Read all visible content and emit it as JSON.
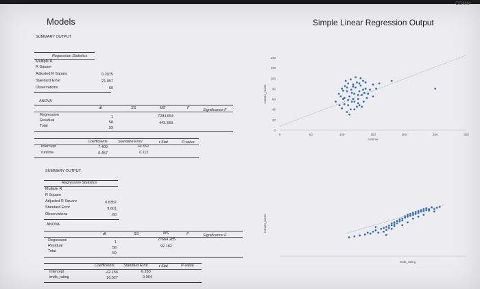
{
  "page": {
    "title": "Models",
    "subtitle": "Simple Linear Regression Output",
    "top_right_fragment": "COMM"
  },
  "output1": {
    "summary_heading": "SUMMARY OUTPUT",
    "regstats_heading": "Regression Statistics",
    "regstats_labels": [
      "Multiple R",
      "R Square",
      "Adjusted R Square",
      "Standard Error",
      "Observations"
    ],
    "regstats_values": [
      "",
      "",
      "0.2075",
      "21.057",
      "60"
    ],
    "anova_heading": "ANOVA",
    "anova_cols": [
      "df",
      "SS",
      "MS",
      "F",
      "Significance F"
    ],
    "anova_rows": [
      {
        "label": "Regression",
        "df": "1",
        "ms": "7294.654"
      },
      {
        "label": "Residual",
        "df": "58",
        "ms": "443.383"
      },
      {
        "label": "Total",
        "df": "59",
        "ms": ""
      }
    ],
    "coef_cols": [
      "Coefficients",
      "Standard Error",
      "t Stat",
      "P-value"
    ],
    "coef_rows": [
      {
        "label": "Intercept",
        "coef": "7.400",
        "se": "14.350"
      },
      {
        "label": "runtime",
        "coef": "0.457",
        "se": "0.113"
      }
    ]
  },
  "output2": {
    "summary_heading": "SUMMARY OUTPUT",
    "regstats_heading": "Regression Statistics",
    "regstats_labels": [
      "Multiple R",
      "R Square",
      "Adjusted R Square",
      "Standard Error",
      "Observations"
    ],
    "regstats_values": [
      "",
      "",
      "0.8352",
      "9.601",
      "60"
    ],
    "anova_heading": "ANOVA",
    "anova_cols": [
      "df",
      "SS",
      "MS",
      "F",
      "Significance F"
    ],
    "anova_rows": [
      {
        "label": "Regression",
        "df": "1",
        "ms": "27664.285"
      },
      {
        "label": "Residual",
        "df": "58",
        "ms": "92.182"
      },
      {
        "label": "Total",
        "df": "59",
        "ms": ""
      }
    ],
    "coef_cols": [
      "Coefficients",
      "Standard Error",
      "t Stat",
      "P-value"
    ],
    "coef_rows": [
      {
        "label": "Intercept",
        "coef": "-42.156",
        "se": "6.283"
      },
      {
        "label": "imdb_rating",
        "coef": "16.527",
        "se": "0.904"
      }
    ]
  },
  "colors": {
    "points": "#2f6fc0",
    "trendline": "#9aa0a6",
    "text": "#2a2a2a"
  },
  "chart_data": [
    {
      "type": "scatter",
      "xlabel": "runtime",
      "ylabel": "tomato_meter",
      "xticks": [
        "0",
        "50",
        "100",
        "150",
        "200",
        "250",
        "300"
      ],
      "yticks": [
        "0",
        "20",
        "40",
        "60",
        "80",
        "100",
        "120",
        "140"
      ],
      "xlim": [
        0,
        300
      ],
      "ylim": [
        0,
        140
      ],
      "points": [
        [
          90,
          55
        ],
        [
          95,
          70
        ],
        [
          100,
          80
        ],
        [
          102,
          60
        ],
        [
          105,
          85
        ],
        [
          108,
          75
        ],
        [
          110,
          90
        ],
        [
          112,
          65
        ],
        [
          115,
          78
        ],
        [
          118,
          88
        ],
        [
          120,
          70
        ],
        [
          122,
          82
        ],
        [
          124,
          92
        ],
        [
          126,
          60
        ],
        [
          128,
          75
        ],
        [
          130,
          86
        ],
        [
          132,
          68
        ],
        [
          134,
          95
        ],
        [
          136,
          72
        ],
        [
          138,
          80
        ],
        [
          100,
          42
        ],
        [
          104,
          50
        ],
        [
          110,
          48
        ],
        [
          116,
          55
        ],
        [
          120,
          40
        ],
        [
          126,
          52
        ],
        [
          132,
          45
        ],
        [
          140,
          62
        ],
        [
          145,
          78
        ],
        [
          150,
          88
        ],
        [
          98,
          65
        ],
        [
          106,
          95
        ],
        [
          114,
          98
        ],
        [
          118,
          60
        ],
        [
          124,
          45
        ],
        [
          128,
          90
        ],
        [
          112,
          30
        ],
        [
          96,
          48
        ],
        [
          108,
          35
        ],
        [
          135,
          55
        ],
        [
          142,
          70
        ],
        [
          150,
          65
        ],
        [
          155,
          80
        ],
        [
          160,
          90
        ],
        [
          130,
          100
        ],
        [
          122,
          102
        ],
        [
          116,
          72
        ],
        [
          104,
          62
        ],
        [
          110,
          58
        ],
        [
          118,
          84
        ],
        [
          126,
          68
        ],
        [
          134,
          78
        ],
        [
          138,
          92
        ],
        [
          102,
          76
        ],
        [
          108,
          82
        ],
        [
          114,
          40
        ],
        [
          120,
          55
        ],
        [
          128,
          48
        ],
        [
          180,
          95
        ],
        [
          250,
          80
        ]
      ],
      "trendline": [
        [
          0,
          7.4
        ],
        [
          300,
          144.5
        ]
      ]
    },
    {
      "type": "scatter",
      "xlabel": "imdb_rating",
      "ylabel": "tomato_meter",
      "points": [
        [
          5.6,
          40
        ],
        [
          5.8,
          42
        ],
        [
          6.0,
          44
        ],
        [
          6.2,
          46
        ],
        [
          6.3,
          50
        ],
        [
          6.4,
          48
        ],
        [
          6.5,
          52
        ],
        [
          6.6,
          55
        ],
        [
          6.7,
          50
        ],
        [
          6.8,
          58
        ],
        [
          6.9,
          60
        ],
        [
          7.0,
          62
        ],
        [
          7.0,
          56
        ],
        [
          7.1,
          65
        ],
        [
          7.1,
          60
        ],
        [
          7.2,
          66
        ],
        [
          7.2,
          70
        ],
        [
          7.3,
          68
        ],
        [
          7.3,
          72
        ],
        [
          7.4,
          75
        ],
        [
          7.4,
          70
        ],
        [
          7.5,
          78
        ],
        [
          7.5,
          74
        ],
        [
          7.6,
          80
        ],
        [
          7.6,
          76
        ],
        [
          7.7,
          82
        ],
        [
          7.7,
          85
        ],
        [
          7.8,
          84
        ],
        [
          7.8,
          88
        ],
        [
          7.9,
          86
        ],
        [
          7.9,
          90
        ],
        [
          8.0,
          92
        ],
        [
          8.0,
          88
        ],
        [
          8.1,
          94
        ],
        [
          8.1,
          90
        ],
        [
          8.2,
          96
        ],
        [
          8.2,
          92
        ],
        [
          8.3,
          95
        ],
        [
          8.3,
          98
        ],
        [
          8.4,
          96
        ],
        [
          8.4,
          100
        ],
        [
          8.5,
          98
        ],
        [
          8.5,
          102
        ],
        [
          8.6,
          100
        ],
        [
          8.6,
          97
        ],
        [
          8.7,
          104
        ],
        [
          8.8,
          100
        ],
        [
          8.9,
          103
        ],
        [
          9.0,
          105
        ],
        [
          7.0,
          45
        ],
        [
          6.6,
          62
        ],
        [
          7.2,
          58
        ],
        [
          7.6,
          66
        ],
        [
          8.0,
          80
        ],
        [
          8.4,
          88
        ],
        [
          8.8,
          95
        ],
        [
          6.9,
          52
        ],
        [
          7.3,
          64
        ],
        [
          7.8,
          72
        ],
        [
          8.2,
          84
        ]
      ],
      "trendline": [
        [
          5.5,
          48.7
        ],
        [
          9.2,
          110
        ]
      ]
    }
  ]
}
